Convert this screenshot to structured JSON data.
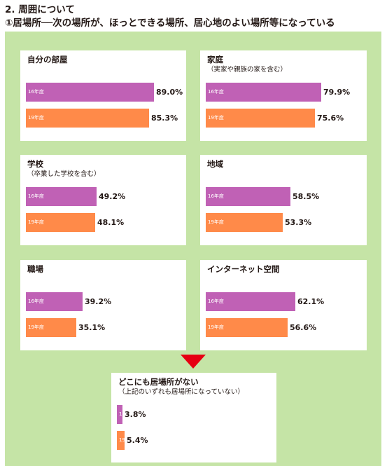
{
  "heading": "2. 周囲について",
  "subheading": "①居場所──次の場所が、ほっとできる場所、居心地のよい場所等になっている",
  "colors": {
    "y16": "#c061b5",
    "y19": "#ff8a49",
    "background": "#c5e4a6",
    "arrow": "#e60012"
  },
  "chart_data": {
    "type": "bar",
    "orientation": "horizontal",
    "xlim": [
      0,
      100
    ],
    "unit": "%",
    "series_names": [
      "16年度",
      "19年度"
    ],
    "panels": [
      {
        "title": "自分の部屋",
        "subtitle": "",
        "values": [
          89.0,
          85.3
        ],
        "labels": [
          "89.0%",
          "85.3%"
        ]
      },
      {
        "title": "家庭",
        "subtitle": "（実家や親族の家を含む）",
        "values": [
          79.9,
          75.6
        ],
        "labels": [
          "79.9%",
          "75.6%"
        ]
      },
      {
        "title": "学校",
        "subtitle": "（卒業した学校を含む）",
        "values": [
          49.2,
          48.1
        ],
        "labels": [
          "49.2%",
          "48.1%"
        ]
      },
      {
        "title": "地域",
        "subtitle": "",
        "values": [
          58.5,
          53.3
        ],
        "labels": [
          "58.5%",
          "53.3%"
        ]
      },
      {
        "title": "職場",
        "subtitle": "",
        "values": [
          39.2,
          35.1
        ],
        "labels": [
          "39.2%",
          "35.1%"
        ]
      },
      {
        "title": "インターネット空間",
        "subtitle": "",
        "values": [
          62.1,
          56.6
        ],
        "labels": [
          "62.1%",
          "56.6%"
        ]
      },
      {
        "title": "どこにも居場所がない",
        "subtitle": "（上記のいずれも居場所になっていない）",
        "values": [
          3.8,
          5.4
        ],
        "labels": [
          "3.8%",
          "5.4%"
        ]
      }
    ]
  }
}
